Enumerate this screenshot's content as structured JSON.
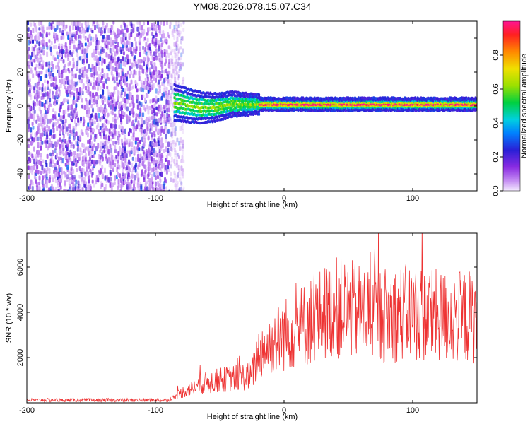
{
  "chart_data": [
    {
      "type": "heatmap",
      "title": "YM08.2026.078.15.07.C34",
      "xlabel": "Height of straight line (km)",
      "ylabel": "Frequency (Hz)",
      "xlim": [
        -200,
        150
      ],
      "ylim": [
        -50,
        50
      ],
      "xticks": [
        -200,
        -100,
        0,
        100
      ],
      "xtick_labels": [
        "-200",
        "-100",
        "0",
        "100"
      ],
      "yticks": [
        -40,
        -20,
        0,
        20,
        40
      ],
      "ytick_labels": [
        "-40",
        "-20",
        "0",
        "20",
        "40"
      ],
      "noise_region_x": [
        -200,
        -80
      ],
      "signal_center_hz": 1,
      "colorbar": {
        "label": "Normalized spectral amplitude",
        "range": [
          0,
          1
        ],
        "ticks": [
          0.0,
          0.2,
          0.4,
          0.6,
          0.8
        ],
        "tick_labels": [
          "0.0",
          "0.2",
          "0.4",
          "0.6",
          "0.8"
        ]
      }
    },
    {
      "type": "line",
      "title": "",
      "xlabel": "Height of straight line (km)",
      "ylabel": "SNR (10 * v/v)",
      "xlim": [
        -200,
        150
      ],
      "ylim": [
        0,
        7500
      ],
      "xticks": [
        -200,
        -100,
        0,
        100
      ],
      "xtick_labels": [
        "-200",
        "-100",
        "0",
        "100"
      ],
      "yticks": [
        2000,
        4000,
        6000
      ],
      "ytick_labels": [
        "2000",
        "4000",
        "6000"
      ],
      "color": "#ee3333",
      "envelope": {
        "x": [
          -200,
          -90,
          -80,
          -60,
          -40,
          -25,
          -20,
          -10,
          0,
          20,
          40,
          60,
          80,
          100,
          120,
          150
        ],
        "y": [
          120,
          120,
          450,
          900,
          1100,
          1200,
          2200,
          2600,
          3000,
          3600,
          4200,
          4000,
          3900,
          4000,
          3800,
          3800
        ]
      }
    }
  ]
}
